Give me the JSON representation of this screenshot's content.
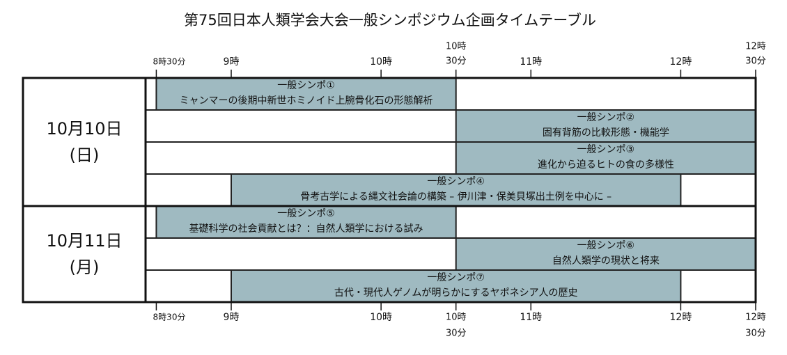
{
  "title": "第75回日本人類学会大会一般シンポジウム企画タイムテーブル",
  "ticks": [
    {
      "value": 8.5,
      "label": "8時30分"
    },
    {
      "value": 9,
      "label": "9時"
    },
    {
      "value": 10,
      "label": "10時"
    },
    {
      "value": 10.5,
      "label": [
        "10時",
        "30分"
      ]
    },
    {
      "value": 11,
      "label": "11時"
    },
    {
      "value": 12,
      "label": "12時"
    },
    {
      "value": 12.5,
      "label": [
        "12時",
        "30分"
      ]
    }
  ],
  "days": [
    {
      "label": [
        "10月10日",
        "(日)"
      ],
      "rows": 4
    },
    {
      "label": [
        "10月11日",
        "(月)"
      ],
      "rows": 3
    }
  ],
  "sessions": [
    {
      "day": 0,
      "row": 0,
      "start": 8.5,
      "end": 10.5,
      "name": "一般シンポ①",
      "title": "ミャンマーの後期中新世ホミノイド上腕骨化石の形態解析"
    },
    {
      "day": 0,
      "row": 1,
      "start": 10.5,
      "end": 12.5,
      "name": "一般シンポ②",
      "title": "固有背筋の比較形態・機能学"
    },
    {
      "day": 0,
      "row": 2,
      "start": 10.5,
      "end": 12.5,
      "name": "一般シンポ③",
      "title": "進化から迫るヒトの食の多様性"
    },
    {
      "day": 0,
      "row": 3,
      "start": 9,
      "end": 12,
      "name": "一般シンポ④",
      "title": "骨考古学による縄文社会論の構築 – 伊川津・保美貝塚出土例を中心に –"
    },
    {
      "day": 1,
      "row": 0,
      "start": 8.5,
      "end": 10.5,
      "name": "一般シンポ⑤",
      "title": "基礎科学の社会貢献とは？：自然人類学における試み"
    },
    {
      "day": 1,
      "row": 1,
      "start": 10.5,
      "end": 12.5,
      "name": "一般シンポ⑥",
      "title": "自然人類学の現状と将来"
    },
    {
      "day": 1,
      "row": 2,
      "start": 9,
      "end": 12,
      "name": "一般シンポ⑦",
      "title": "古代・現代人ゲノムが明らかにするヤポネシア人の歴史"
    }
  ]
}
